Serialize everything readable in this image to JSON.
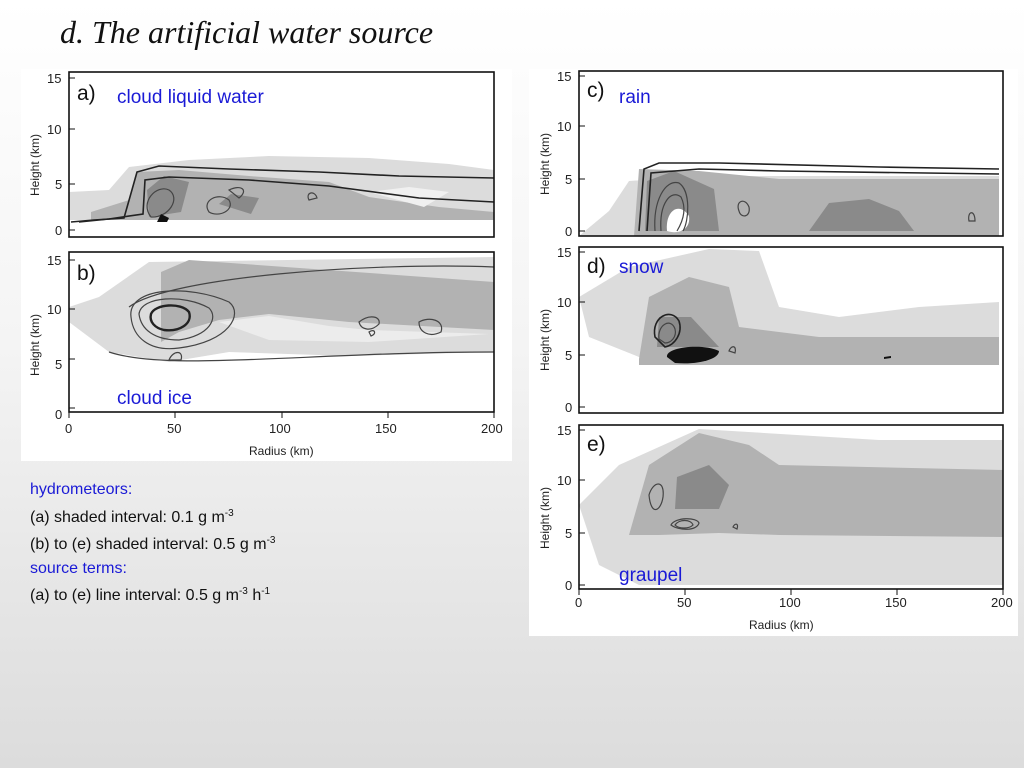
{
  "slide": {
    "title": "d. The artificial water source"
  },
  "panels": {
    "a": {
      "letter": "a)",
      "species": "cloud liquid water"
    },
    "b": {
      "letter": "b)",
      "species": "cloud ice"
    },
    "c": {
      "letter": "c)",
      "species": "rain"
    },
    "d": {
      "letter": "d)",
      "species": "snow"
    },
    "e": {
      "letter": "e)",
      "species": "graupel"
    }
  },
  "axes": {
    "y_label": "Height (km)",
    "x_label": "Radius (km)",
    "y_ticks": [
      "0",
      "5",
      "10",
      "15"
    ],
    "x_ticks": [
      "0",
      "50",
      "100",
      "150",
      "200"
    ]
  },
  "caption": {
    "hydrometeors_heading": "hydrometeors:",
    "line_a": "(a) shaded interval: 0.1 g m",
    "line_a_exp": "-3",
    "line_be": "(b) to (e) shaded interval: 0.5 g m",
    "line_be_exp": "-3",
    "source_heading": "source terms:",
    "line_ae": "(a) to (e) line interval: 0.5 g m",
    "line_ae_exp1": "-3",
    "line_ae_mid": " h",
    "line_ae_exp2": "-1"
  }
}
